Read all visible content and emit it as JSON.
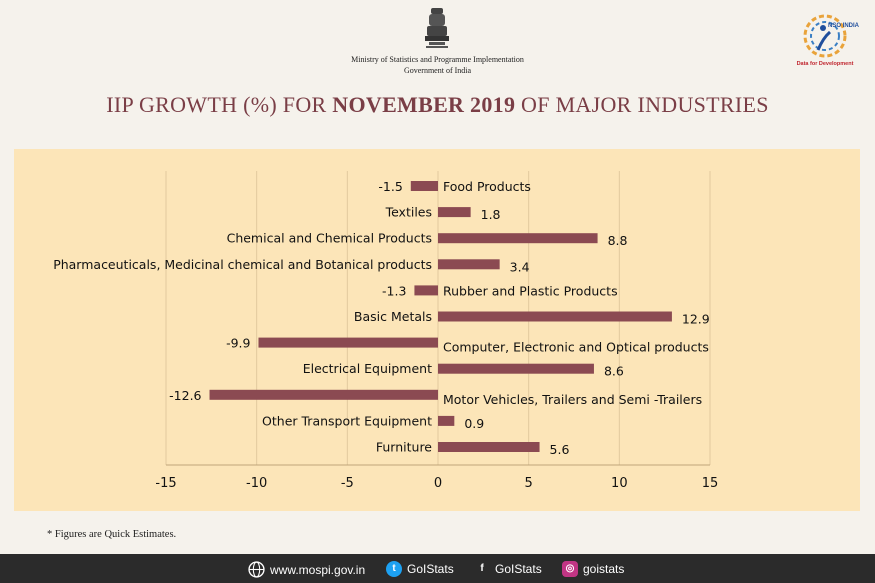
{
  "header": {
    "ministry": "Ministry of Statistics and Programme Implementation",
    "government": "Government of India",
    "logo_tagline": "Data for Development",
    "logo_text": "NSO INDIA"
  },
  "title": {
    "prefix": "IIP GROWTH (%) FOR ",
    "bold": "NOVEMBER 2019",
    "suffix": " OF MAJOR INDUSTRIES"
  },
  "footnote": "* Figures are Quick Estimates.",
  "footer": {
    "website": "www.mospi.gov.in",
    "twitter": "GoIStats",
    "facebook": "GoIStats",
    "instagram": "goistats"
  },
  "colors": {
    "bar": "#8b4a52",
    "panel": "#fce5b8",
    "grid": "#e2c99e",
    "title": "#7a3e46"
  },
  "chart_data": {
    "type": "bar",
    "orientation": "horizontal",
    "categories": [
      "Food Products",
      "Textiles",
      "Chemical and Chemical Products",
      "Pharmaceuticals, Medicinal chemical and Botanical products",
      "Rubber and Plastic Products",
      "Basic Metals",
      "Computer, Electronic and Optical products",
      "Electrical Equipment",
      "Motor Vehicles, Trailers and Semi -Trailers",
      "Other Transport Equipment",
      "Furniture"
    ],
    "values": [
      -1.5,
      1.8,
      8.8,
      3.4,
      -1.3,
      12.9,
      -9.9,
      8.6,
      -12.6,
      0.9,
      5.6
    ],
    "value_labels": [
      "-1.5",
      "1.8",
      "8.8",
      "3.4",
      "-1.3",
      "12.9",
      "-9.9",
      "8.6",
      "-12.6",
      "0.9",
      "5.6"
    ],
    "xlim": [
      -15,
      15
    ],
    "xticks": [
      -15,
      -10,
      -5,
      0,
      5,
      10,
      15
    ],
    "xtick_labels": [
      "-15",
      "-10",
      "-5",
      "0",
      "5",
      "10",
      "15"
    ],
    "grid": true,
    "title": "IIP GROWTH (%) FOR NOVEMBER 2019 OF MAJOR INDUSTRIES",
    "xlabel": "",
    "ylabel": ""
  }
}
